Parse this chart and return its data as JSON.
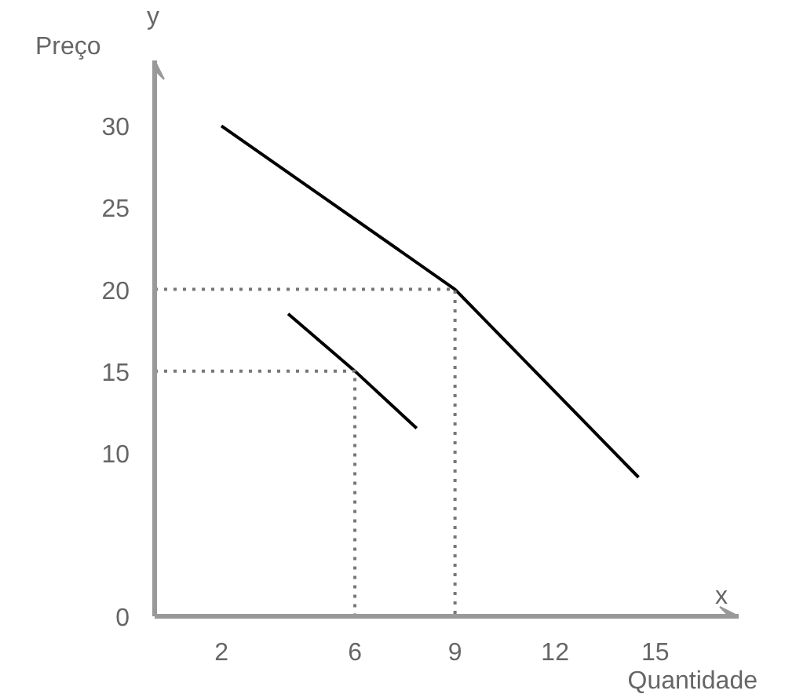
{
  "chart_data": {
    "type": "line",
    "xlabel": "Quantidade",
    "ylabel": "Preço",
    "annotations": [
      "x",
      "y"
    ],
    "xlim": [
      0,
      17.5
    ],
    "ylim": [
      0,
      34
    ],
    "xticks": [
      2,
      6,
      9,
      12,
      15
    ],
    "yticks": [
      0,
      10,
      15,
      20,
      25,
      30
    ],
    "grid": false,
    "marker": "none",
    "series": [
      {
        "color": "#000000",
        "x": [
          2,
          9,
          14.5
        ],
        "values": [
          30,
          20,
          8.5
        ]
      },
      {
        "color": "#000000",
        "x": [
          4,
          6,
          7.85
        ],
        "values": [
          18.5,
          15,
          11.5
        ]
      },
      {
        "color": "#777777",
        "line_style": "dotted",
        "x": [
          0,
          9,
          9
        ],
        "values": [
          20,
          20,
          0
        ]
      },
      {
        "color": "#777777",
        "line_style": "dotted",
        "x": [
          0,
          6,
          6
        ],
        "values": [
          15,
          15,
          0
        ]
      }
    ]
  }
}
